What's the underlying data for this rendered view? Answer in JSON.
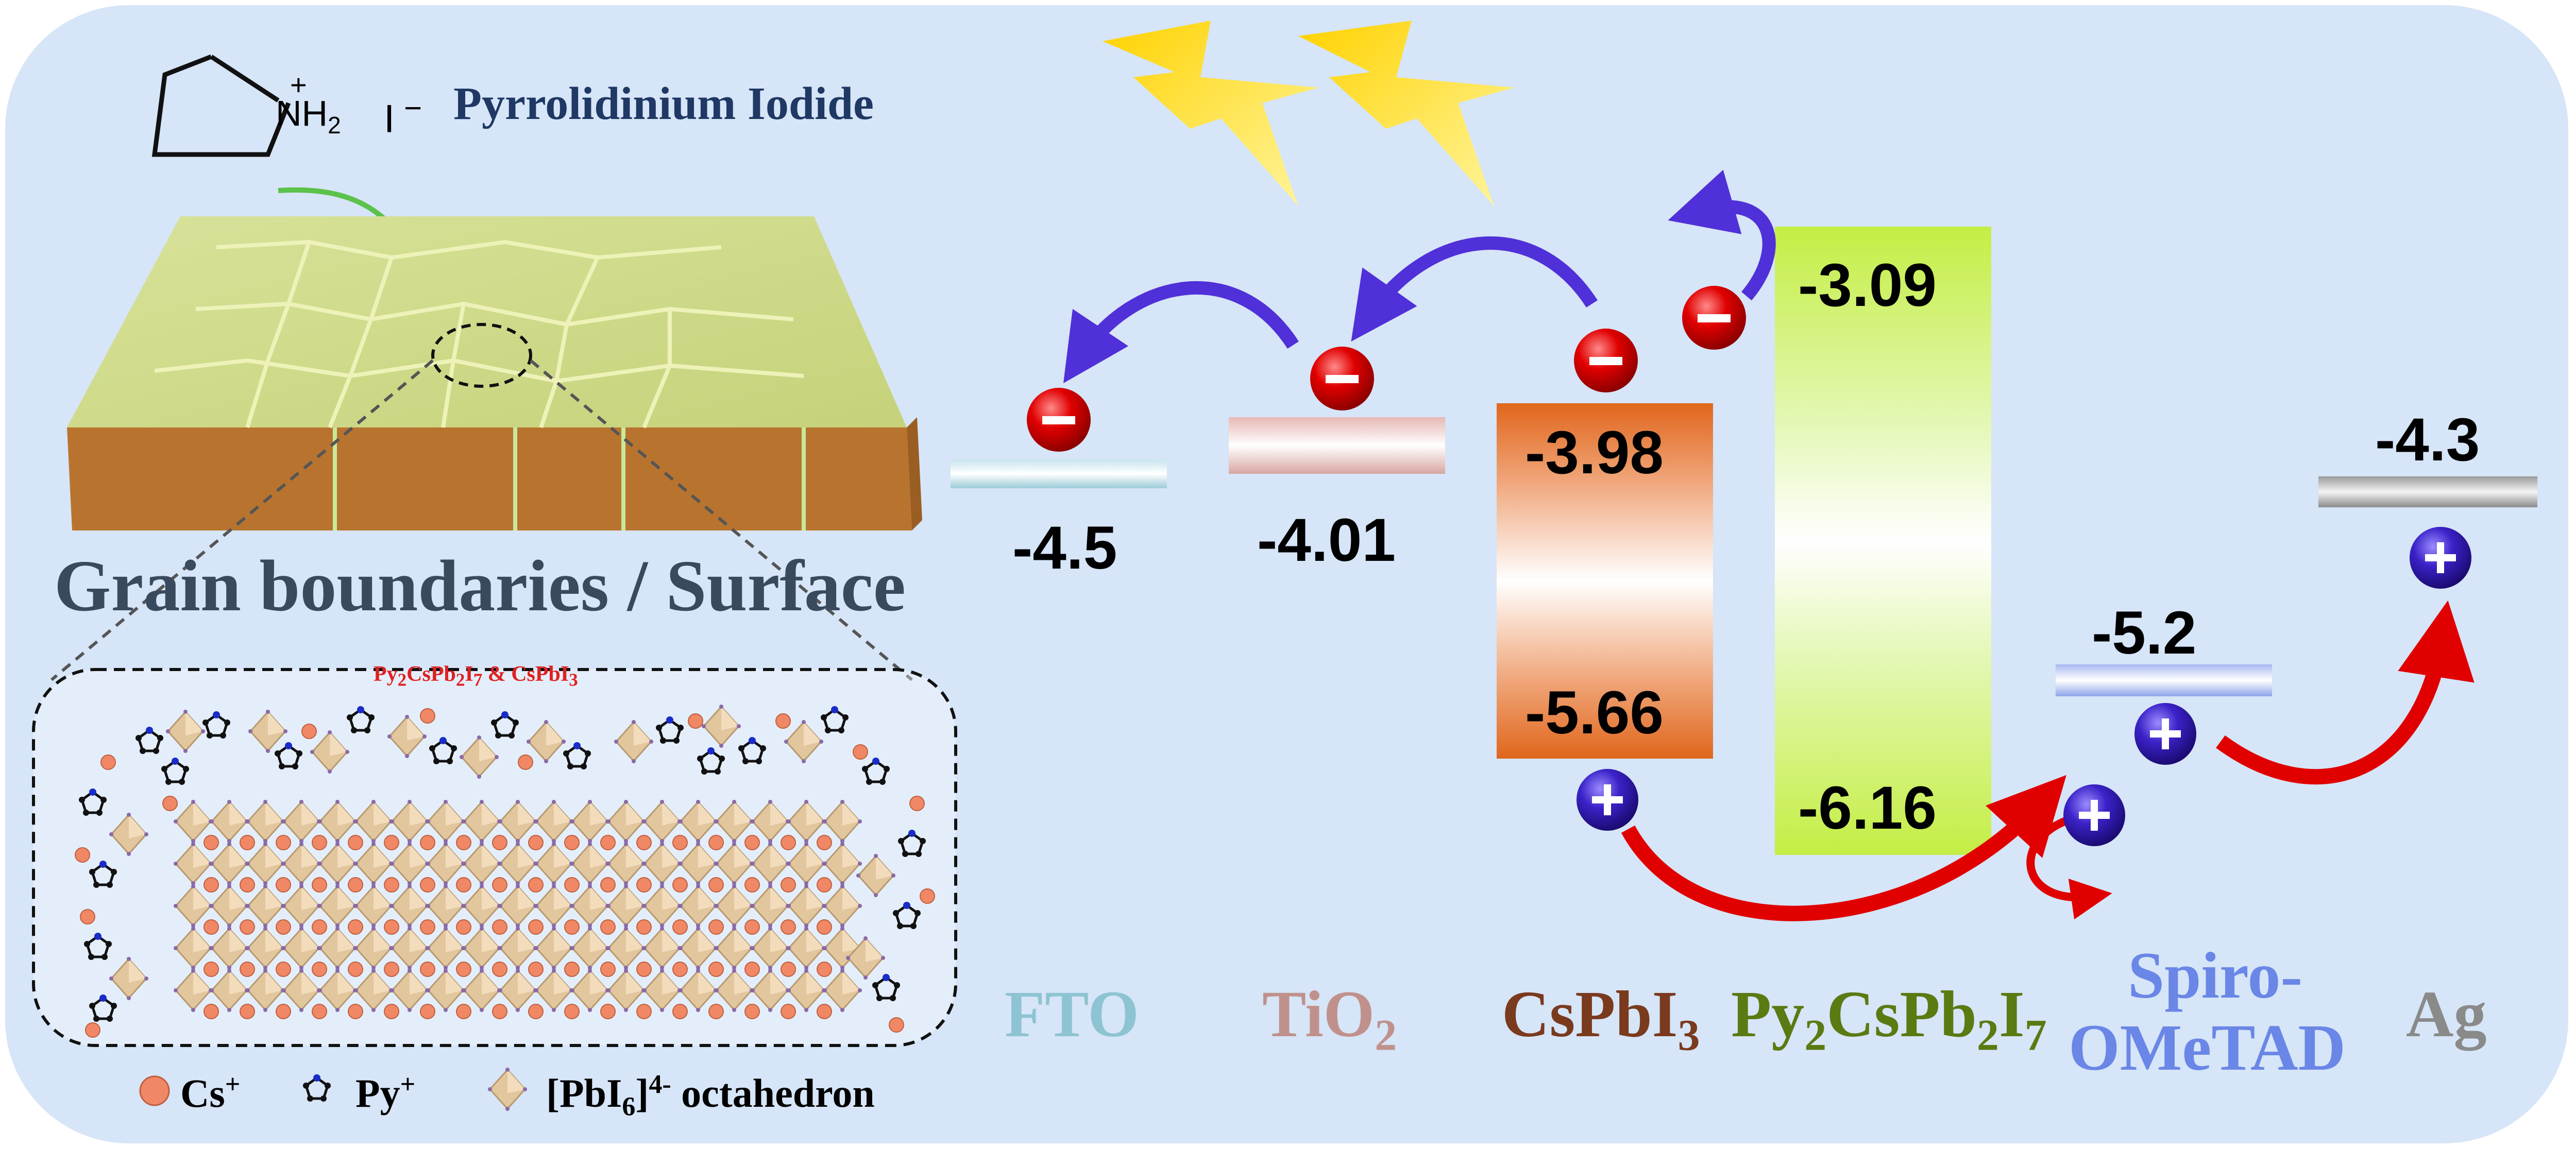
{
  "molecule": {
    "cation_label": "NH",
    "cation_subscript": "2",
    "cation_charge": "+",
    "anion": "I",
    "anion_charge": "−",
    "name": "Pyrrolidinium Iodide"
  },
  "grain_caption": "Grain boundaries / Surface",
  "inset_caption": {
    "part1": "Py",
    "sub1": "2",
    "part2": "CsPb",
    "sub2": "2",
    "part3": "I",
    "sub3": "7",
    "part4": " & CsPbI",
    "sub4": "3"
  },
  "legend": {
    "cs_label": "Cs",
    "cs_charge": "+",
    "py_label": "Py",
    "py_charge": "+",
    "oct_label_a": "[PbI",
    "oct_sub": "6",
    "oct_label_b": "]",
    "oct_charge": "4-",
    "oct_label_c": " octahedron"
  },
  "levels": {
    "fto": "-4.5",
    "tio2": "-4.01",
    "cspbi3_cb": "-3.98",
    "cspbi3_vb": "-5.66",
    "py_cb": "-3.09",
    "py_vb": "-6.16",
    "spiro": "-5.2",
    "ag": "-4.3"
  },
  "materials": {
    "fto": "FTO",
    "tio2_a": "TiO",
    "tio2_sub": "2",
    "cspbi3_a": "CsPbI",
    "cspbi3_sub": "3",
    "py_a": "Py",
    "py_sub1": "2",
    "py_b": "CsPb",
    "py_sub2": "2",
    "py_c": "I",
    "py_sub3": "7",
    "spiro_line1": "Spiro-",
    "spiro_line2": "OMeTAD",
    "ag": "Ag"
  },
  "carriers": {
    "electron": "−",
    "hole": "+"
  },
  "colors": {
    "panel": "#d6e5f7",
    "fto": "#7fb8c8",
    "tio2": "#b88480",
    "cspbi3": "#7a3a1e",
    "py": "#5a7a12",
    "spiro": "#6a86e6",
    "ag": "#8a8a8a",
    "cspbi3_band": "#e0661c",
    "py_band": "#c8f050",
    "electron": "#d40000",
    "hole": "#3a22c8",
    "arrow_e": "#5030d8",
    "arrow_h": "#e00000"
  }
}
